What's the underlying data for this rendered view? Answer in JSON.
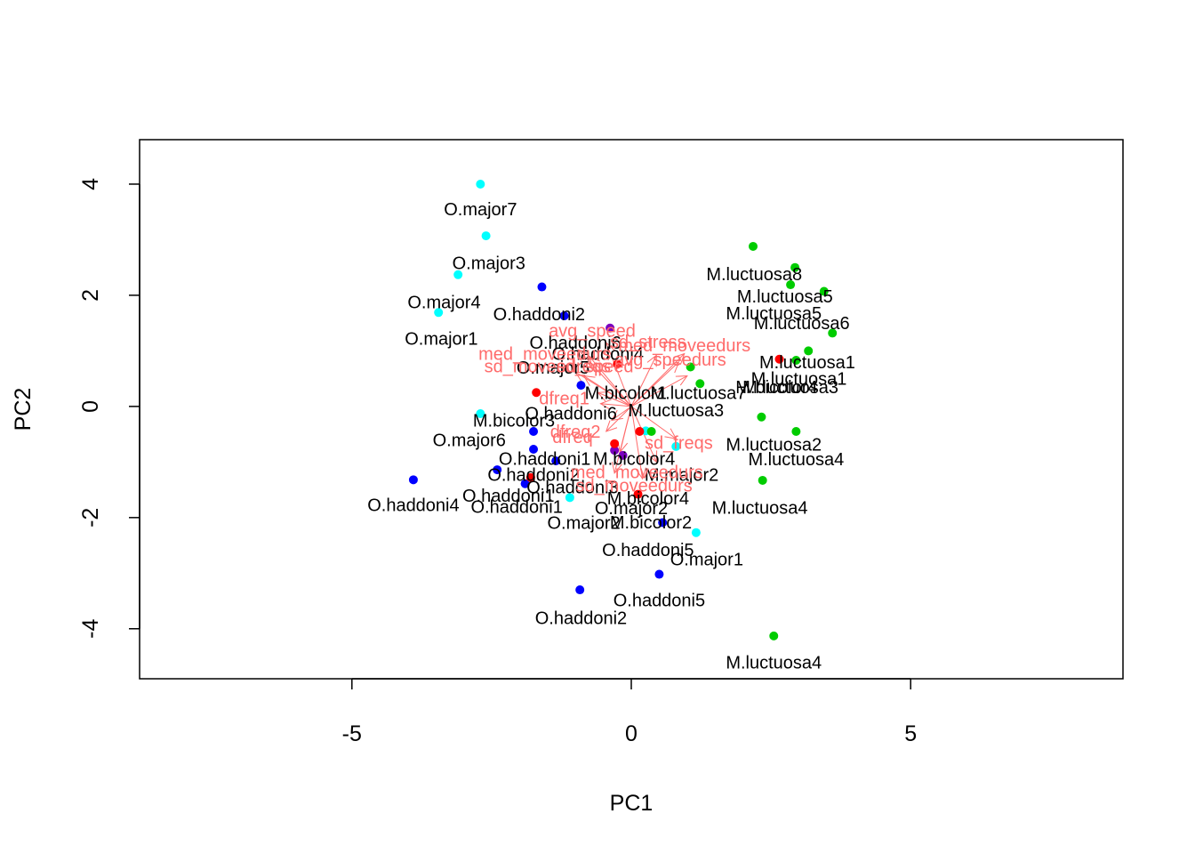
{
  "chart_data": {
    "type": "scatter",
    "xlabel": "PC1",
    "ylabel": "PC2",
    "xlim": [
      -8.8,
      8.8
    ],
    "ylim": [
      -4.9,
      4.8
    ],
    "xticks": [
      -5,
      0,
      5
    ],
    "yticks": [
      -4,
      -2,
      0,
      2,
      4
    ],
    "grid": false,
    "colors": {
      "M.luctuosa": "#00cc00",
      "O.major": "#00ffff",
      "O.haddoni": "#0000ff",
      "M.bicolor": "#ff0000",
      "mixed": "#7a00c0",
      "vector": "#ff6b6b"
    },
    "points": [
      {
        "x": -2.7,
        "y": 4.0,
        "color": "O.major"
      },
      {
        "x": -2.6,
        "y": 3.07,
        "color": "O.major"
      },
      {
        "x": -3.1,
        "y": 2.37,
        "color": "O.major"
      },
      {
        "x": -3.45,
        "y": 1.69,
        "color": "O.major"
      },
      {
        "x": -2.7,
        "y": -0.13,
        "color": "O.major"
      },
      {
        "x": 0.26,
        "y": -0.44,
        "color": "O.major"
      },
      {
        "x": 0.8,
        "y": -0.72,
        "color": "O.major"
      },
      {
        "x": -1.1,
        "y": -1.64,
        "color": "O.major"
      },
      {
        "x": 1.16,
        "y": -2.27,
        "color": "O.major"
      },
      {
        "x": -1.6,
        "y": 2.15,
        "color": "O.haddoni"
      },
      {
        "x": -1.2,
        "y": 1.63,
        "color": "O.haddoni"
      },
      {
        "x": -0.9,
        "y": 0.38,
        "color": "O.haddoni"
      },
      {
        "x": -1.75,
        "y": -0.45,
        "color": "O.haddoni"
      },
      {
        "x": -1.75,
        "y": -0.77,
        "color": "O.haddoni"
      },
      {
        "x": -1.35,
        "y": -0.98,
        "color": "O.haddoni"
      },
      {
        "x": -2.4,
        "y": -1.14,
        "color": "O.haddoni"
      },
      {
        "x": -3.9,
        "y": -1.32,
        "color": "O.haddoni"
      },
      {
        "x": -1.9,
        "y": -1.39,
        "color": "O.haddoni"
      },
      {
        "x": 0.56,
        "y": -2.09,
        "color": "O.haddoni"
      },
      {
        "x": 0.5,
        "y": -3.02,
        "color": "O.haddoni"
      },
      {
        "x": -0.92,
        "y": -3.3,
        "color": "O.haddoni"
      },
      {
        "x": -0.38,
        "y": 1.41,
        "color": "mixed"
      },
      {
        "x": -0.3,
        "y": -0.79,
        "color": "mixed"
      },
      {
        "x": -0.15,
        "y": -0.88,
        "color": "mixed"
      },
      {
        "x": -0.25,
        "y": 0.76,
        "color": "M.bicolor"
      },
      {
        "x": -1.7,
        "y": 0.25,
        "color": "M.bicolor"
      },
      {
        "x": -0.3,
        "y": -0.67,
        "color": "M.bicolor"
      },
      {
        "x": 0.15,
        "y": -0.45,
        "color": "M.bicolor"
      },
      {
        "x": -1.8,
        "y": -1.28,
        "color": "M.bicolor"
      },
      {
        "x": 0.12,
        "y": -1.58,
        "color": "M.bicolor"
      },
      {
        "x": 2.65,
        "y": 0.85,
        "color": "M.bicolor"
      },
      {
        "x": 2.18,
        "y": 2.88,
        "color": "M.luctuosa"
      },
      {
        "x": 2.93,
        "y": 2.5,
        "color": "M.luctuosa"
      },
      {
        "x": 2.85,
        "y": 2.19,
        "color": "M.luctuosa"
      },
      {
        "x": 3.45,
        "y": 2.07,
        "color": "M.luctuosa"
      },
      {
        "x": 3.6,
        "y": 1.32,
        "color": "M.luctuosa"
      },
      {
        "x": 3.17,
        "y": 1.0,
        "color": "M.luctuosa"
      },
      {
        "x": 2.95,
        "y": 0.83,
        "color": "M.luctuosa"
      },
      {
        "x": 1.06,
        "y": 0.71,
        "color": "M.luctuosa"
      },
      {
        "x": 1.23,
        "y": 0.41,
        "color": "M.luctuosa"
      },
      {
        "x": 2.33,
        "y": -0.19,
        "color": "M.luctuosa"
      },
      {
        "x": 0.36,
        "y": -0.45,
        "color": "M.luctuosa"
      },
      {
        "x": 2.95,
        "y": -0.45,
        "color": "M.luctuosa"
      },
      {
        "x": 2.35,
        "y": -1.33,
        "color": "M.luctuosa"
      },
      {
        "x": 2.55,
        "y": -4.13,
        "color": "M.luctuosa"
      }
    ],
    "point_labels": [
      {
        "text": "O.major7",
        "x": -2.7,
        "y": 3.55
      },
      {
        "text": "O.major3",
        "x": -2.55,
        "y": 2.58
      },
      {
        "text": "O.major4",
        "x": -3.35,
        "y": 1.88
      },
      {
        "text": "O.haddoni2",
        "x": -1.65,
        "y": 1.66
      },
      {
        "text": "O.major1",
        "x": -3.4,
        "y": 1.22
      },
      {
        "text": "O.haddoni6",
        "x": -1.0,
        "y": 1.15
      },
      {
        "text": "O.haddoni4",
        "x": -0.6,
        "y": 0.95
      },
      {
        "text": "O.major5",
        "x": -1.4,
        "y": 0.7
      },
      {
        "text": "M.bicolor1",
        "x": -0.1,
        "y": 0.25
      },
      {
        "text": "O.haddoni6",
        "x": -1.08,
        "y": -0.12
      },
      {
        "text": "M.bicolor3",
        "x": -2.1,
        "y": -0.25
      },
      {
        "text": "O.major6",
        "x": -2.9,
        "y": -0.6
      },
      {
        "text": "O.haddoni1",
        "x": -1.55,
        "y": -0.94
      },
      {
        "text": "M.bicolor4",
        "x": 0.05,
        "y": -0.94
      },
      {
        "text": "O.haddoni2",
        "x": -1.75,
        "y": -1.23
      },
      {
        "text": "O.haddoni3",
        "x": -1.05,
        "y": -1.45
      },
      {
        "text": "M.major2",
        "x": 0.9,
        "y": -1.23
      },
      {
        "text": "O.haddoni1",
        "x": -2.2,
        "y": -1.6
      },
      {
        "text": "M.bicolor4",
        "x": 0.3,
        "y": -1.65
      },
      {
        "text": "O.haddoni4",
        "x": -3.9,
        "y": -1.77
      },
      {
        "text": "O.haddoni1",
        "x": -2.05,
        "y": -1.8
      },
      {
        "text": "O.major2",
        "x": 0.0,
        "y": -1.83
      },
      {
        "text": "M.bicolor2",
        "x": 0.35,
        "y": -2.08
      },
      {
        "text": "O.major2",
        "x": -0.85,
        "y": -2.09
      },
      {
        "text": "O.haddoni5",
        "x": 0.3,
        "y": -2.58
      },
      {
        "text": "O.major1",
        "x": 1.35,
        "y": -2.75
      },
      {
        "text": "O.haddoni5",
        "x": 0.5,
        "y": -3.48
      },
      {
        "text": "O.haddoni2",
        "x": -0.9,
        "y": -3.8
      },
      {
        "text": "M.luctuosa8",
        "x": 2.2,
        "y": 2.38
      },
      {
        "text": "M.luctuosa5",
        "x": 2.75,
        "y": 1.98
      },
      {
        "text": "M.luctuosa5",
        "x": 2.55,
        "y": 1.68
      },
      {
        "text": "M.luctuosa6",
        "x": 3.05,
        "y": 1.5
      },
      {
        "text": "M.luctuosa1",
        "x": 3.15,
        "y": 0.8
      },
      {
        "text": "M.luctuosa1",
        "x": 3.0,
        "y": 0.5
      },
      {
        "text": "M.bicolor4",
        "x": 2.6,
        "y": 0.35
      },
      {
        "text": "M.luctuosa3",
        "x": 2.85,
        "y": 0.35
      },
      {
        "text": "M.luctuosa7",
        "x": 1.2,
        "y": 0.25
      },
      {
        "text": "M.luctuosa3",
        "x": 0.8,
        "y": -0.07
      },
      {
        "text": "M.luctuosa2",
        "x": 2.55,
        "y": -0.68
      },
      {
        "text": "M.luctuosa4",
        "x": 2.95,
        "y": -0.95
      },
      {
        "text": "M.luctuosa4",
        "x": 2.3,
        "y": -1.82
      },
      {
        "text": "M.luctuosa4",
        "x": 2.55,
        "y": -4.6
      }
    ],
    "vectors": [
      {
        "x": -0.95,
        "y": 1.02
      },
      {
        "x": -0.45,
        "y": 1.15
      },
      {
        "x": -0.75,
        "y": 0.9
      },
      {
        "x": 0.45,
        "y": 0.92
      },
      {
        "x": 0.95,
        "y": 0.95
      },
      {
        "x": 0.85,
        "y": 0.8
      },
      {
        "x": 1.0,
        "y": 0.55
      },
      {
        "x": -1.0,
        "y": 0.62
      },
      {
        "x": -0.85,
        "y": 0.55
      },
      {
        "x": -0.6,
        "y": 0.25
      },
      {
        "x": -0.55,
        "y": 0.05
      },
      {
        "x": -0.35,
        "y": -0.25
      },
      {
        "x": -0.45,
        "y": -0.45
      },
      {
        "x": 0.8,
        "y": -0.58
      },
      {
        "x": -0.2,
        "y": -0.82
      },
      {
        "x": 0.45,
        "y": -1.0
      },
      {
        "x": -0.3,
        "y": -1.2
      },
      {
        "x": 0.2,
        "y": -1.3
      }
    ],
    "vector_labels": [
      {
        "text": "avg_speed",
        "x": -0.7,
        "y": 1.37
      },
      {
        "text": "sd_stress",
        "x": 0.3,
        "y": 1.17
      },
      {
        "text": "med_moveedurs",
        "x": 0.95,
        "y": 1.1
      },
      {
        "text": "med_moveedurs",
        "x": -1.55,
        "y": 0.95
      },
      {
        "text": "avg_speedurs",
        "x": 0.7,
        "y": 0.85
      },
      {
        "text": "sd_moveedreqs",
        "x": -1.5,
        "y": 0.73
      },
      {
        "text": "sd_speed",
        "x": -0.65,
        "y": 0.73
      },
      {
        "text": "dfreq1",
        "x": -1.2,
        "y": 0.15
      },
      {
        "text": "dfreq2",
        "x": -1.0,
        "y": -0.45
      },
      {
        "text": "dfreq",
        "x": -1.05,
        "y": -0.55
      },
      {
        "text": "sd_freqs",
        "x": 0.85,
        "y": -0.65
      },
      {
        "text": "med_moveedurs",
        "x": 0.1,
        "y": -1.18
      },
      {
        "text": "sd_moveedurs",
        "x": 0.05,
        "y": -1.42
      }
    ]
  }
}
